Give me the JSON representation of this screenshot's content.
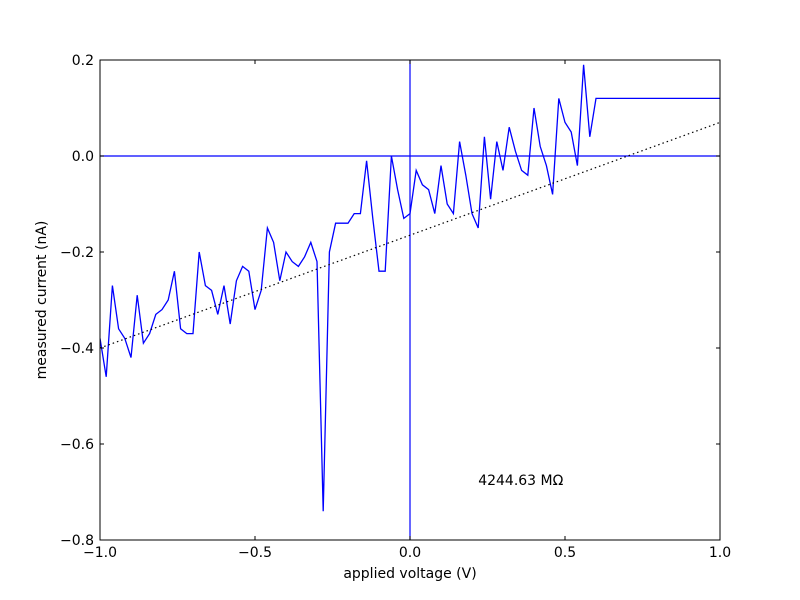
{
  "chart_data": {
    "type": "line",
    "xlabel": "applied voltage (V)",
    "ylabel": "measured current (nA)",
    "xlim": [
      -1.0,
      1.0
    ],
    "ylim": [
      -0.8,
      0.2
    ],
    "x_ticks": [
      -1.0,
      -0.5,
      0.0,
      0.5,
      1.0
    ],
    "x_tick_labels": [
      "−1.0",
      "−0.5",
      "0.0",
      "0.5",
      "1.0"
    ],
    "y_ticks": [
      -0.8,
      -0.6,
      -0.4,
      -0.2,
      0.0,
      0.2
    ],
    "y_tick_labels": [
      "−0.8",
      "−0.6",
      "−0.4",
      "−0.2",
      "0.0",
      "0.2"
    ],
    "grid": false,
    "annotation": {
      "text": "4244.63 MΩ",
      "x": 0.22,
      "y": -0.675
    },
    "reference_lines": {
      "vertical_x": 0.0,
      "horizontal_y": 0.0
    },
    "series": [
      {
        "style": "solid",
        "color": "#0000ff",
        "x": [
          -1.0,
          -0.98,
          -0.96,
          -0.94,
          -0.92,
          -0.9,
          -0.88,
          -0.86,
          -0.84,
          -0.82,
          -0.8,
          -0.78,
          -0.76,
          -0.74,
          -0.72,
          -0.7,
          -0.68,
          -0.66,
          -0.64,
          -0.62,
          -0.6,
          -0.58,
          -0.56,
          -0.54,
          -0.52,
          -0.5,
          -0.48,
          -0.46,
          -0.44,
          -0.42,
          -0.4,
          -0.38,
          -0.36,
          -0.34,
          -0.32,
          -0.3,
          -0.28,
          -0.26,
          -0.24,
          -0.22,
          -0.2,
          -0.18,
          -0.16,
          -0.14,
          -0.12,
          -0.1,
          -0.08,
          -0.06,
          -0.04,
          -0.02,
          0.0,
          0.02,
          0.04,
          0.06,
          0.08,
          0.1,
          0.12,
          0.14,
          0.16,
          0.18,
          0.2,
          0.22,
          0.24,
          0.26,
          0.28,
          0.3,
          0.32,
          0.34,
          0.36,
          0.38,
          0.4,
          0.42,
          0.44,
          0.46,
          0.48,
          0.5,
          0.52,
          0.54,
          0.56,
          0.58,
          0.6,
          0.62,
          0.64,
          0.66,
          0.68,
          0.7,
          0.72,
          0.74,
          0.76,
          0.78,
          0.8,
          0.82,
          0.84,
          0.86,
          0.88,
          0.9,
          0.92,
          0.94,
          0.96,
          0.98,
          1.0
        ],
        "y": [
          -0.38,
          -0.46,
          -0.27,
          -0.36,
          -0.38,
          -0.42,
          -0.29,
          -0.39,
          -0.37,
          -0.33,
          -0.32,
          -0.3,
          -0.24,
          -0.36,
          -0.37,
          -0.37,
          -0.2,
          -0.27,
          -0.28,
          -0.33,
          -0.27,
          -0.35,
          -0.26,
          -0.23,
          -0.24,
          -0.32,
          -0.28,
          -0.15,
          -0.18,
          -0.26,
          -0.2,
          -0.22,
          -0.23,
          -0.21,
          -0.18,
          -0.22,
          -0.74,
          -0.2,
          -0.14,
          -0.14,
          -0.14,
          -0.12,
          -0.12,
          -0.01,
          -0.13,
          -0.24,
          -0.24,
          0.0,
          -0.07,
          -0.13,
          -0.12,
          -0.03,
          -0.06,
          -0.07,
          -0.12,
          -0.02,
          -0.1,
          -0.12,
          0.03,
          -0.04,
          -0.12,
          -0.15,
          0.04,
          -0.09,
          0.03,
          -0.03,
          0.06,
          0.01,
          -0.03,
          -0.04,
          0.1,
          0.02,
          -0.02,
          -0.08,
          0.12,
          0.07,
          0.05,
          -0.02,
          0.19,
          0.04,
          0.12,
          0.12,
          0.12,
          0.12,
          0.12,
          0.12,
          0.12,
          0.12,
          0.12,
          0.12,
          0.12,
          0.12,
          0.12,
          0.12,
          0.12,
          0.12,
          0.12,
          0.12,
          0.12,
          0.12,
          0.12
        ]
      },
      {
        "style": "dotted",
        "color": "#000000",
        "x": [
          -1.0,
          1.0
        ],
        "y": [
          -0.4,
          0.07
        ]
      }
    ]
  }
}
